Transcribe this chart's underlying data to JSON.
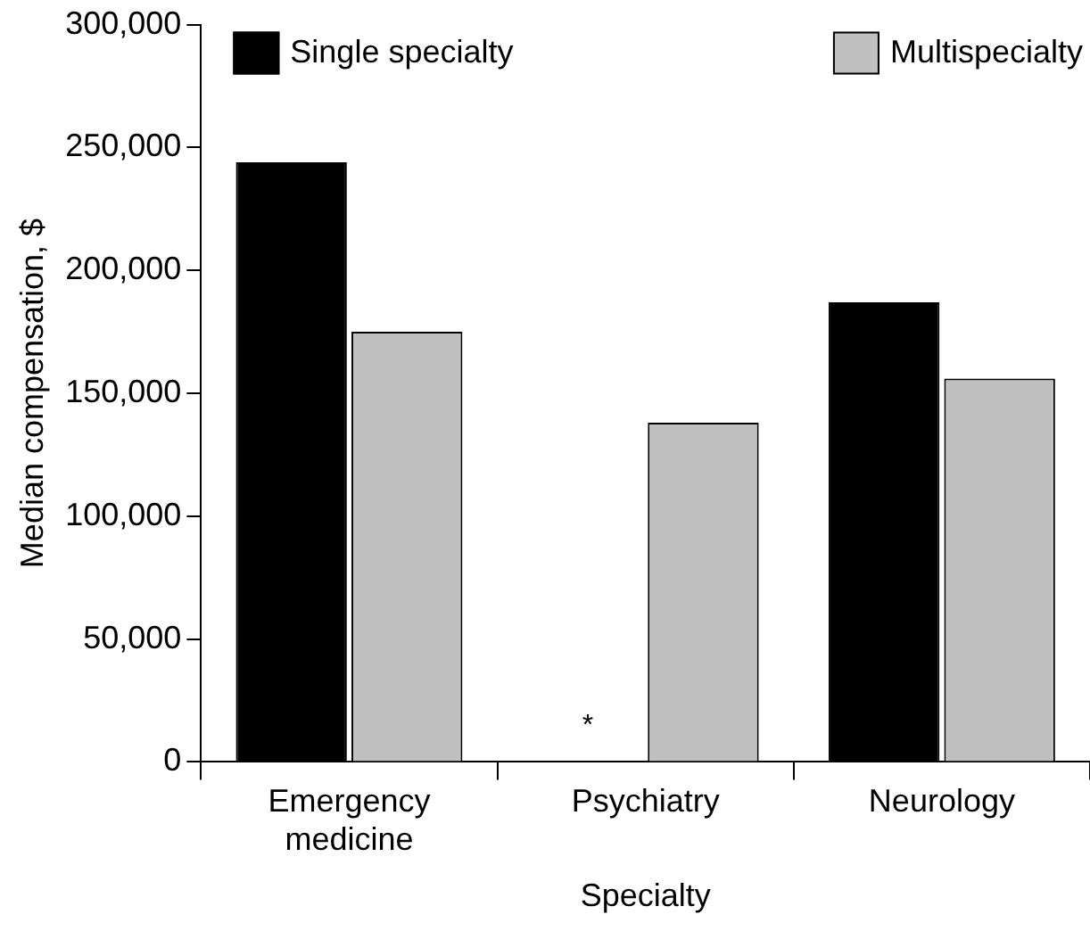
{
  "chart_data": {
    "type": "bar",
    "xlabel": "Specialty",
    "ylabel": "Median compensation, $",
    "categories": [
      "Emergency medicine",
      "Psychiatry",
      "Neurology"
    ],
    "series": [
      {
        "name": "Single specialty",
        "color": "#000000",
        "values": [
          244000,
          null,
          187000
        ]
      },
      {
        "name": "Multispecialty",
        "color": "#c0c0c0",
        "values": [
          175000,
          138000,
          156000
        ]
      }
    ],
    "ylim": [
      0,
      300000
    ],
    "yticks": [
      {
        "value": 0,
        "label": "0"
      },
      {
        "value": 50000,
        "label": "50,000"
      },
      {
        "value": 100000,
        "label": "100,000"
      },
      {
        "value": 150000,
        "label": "150,000"
      },
      {
        "value": 200000,
        "label": "200,000"
      },
      {
        "value": 250000,
        "label": "250,000"
      },
      {
        "value": 300000,
        "label": "300,000"
      }
    ],
    "annotations": [
      {
        "text": "*",
        "x": "Psychiatry",
        "y": 0
      }
    ],
    "legend": "top",
    "grid": false
  }
}
